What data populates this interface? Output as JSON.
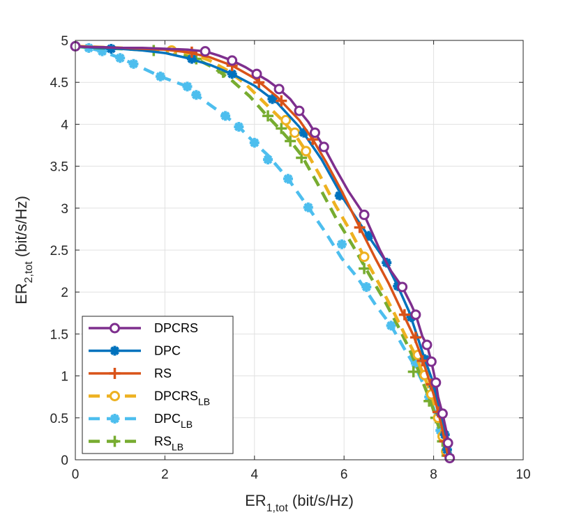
{
  "chart_data": {
    "type": "line",
    "title": "",
    "xlabel": {
      "main": "ER",
      "sub": "1,tot",
      "suffix": " (bit/s/Hz)"
    },
    "ylabel": {
      "main": "ER",
      "sub": "2,tot",
      "suffix": " (bit/s/Hz)"
    },
    "xlim": [
      0,
      10
    ],
    "ylim": [
      0,
      5
    ],
    "xticks": [
      "0",
      "2",
      "4",
      "6",
      "8",
      "10"
    ],
    "yticks": [
      "0",
      "0.5",
      "1",
      "1.5",
      "2",
      "2.5",
      "3",
      "3.5",
      "4",
      "4.5",
      "5"
    ],
    "grid": true,
    "legend_position": "bottom-left",
    "series": [
      {
        "name": "DPCRS",
        "sub": "",
        "color": "#7E2F8E",
        "linestyle": "solid",
        "marker": "circle",
        "points": [
          [
            0,
            4.93
          ],
          [
            0.3,
            4.92
          ],
          [
            0.6,
            4.92
          ],
          [
            1.0,
            4.91
          ],
          [
            1.5,
            4.91
          ],
          [
            2.0,
            4.9
          ],
          [
            2.5,
            4.89
          ],
          [
            2.9,
            4.87
          ],
          [
            3.2,
            4.82
          ],
          [
            3.5,
            4.76
          ],
          [
            3.8,
            4.68
          ],
          [
            4.05,
            4.6
          ],
          [
            4.3,
            4.52
          ],
          [
            4.55,
            4.42
          ],
          [
            4.8,
            4.3
          ],
          [
            5.0,
            4.16
          ],
          [
            5.2,
            4.03
          ],
          [
            5.35,
            3.9
          ],
          [
            5.55,
            3.73
          ],
          [
            5.8,
            3.48
          ],
          [
            6.1,
            3.2
          ],
          [
            6.45,
            2.92
          ],
          [
            6.8,
            2.5
          ],
          [
            7.05,
            2.25
          ],
          [
            7.3,
            2.06
          ],
          [
            7.5,
            1.85
          ],
          [
            7.6,
            1.73
          ],
          [
            7.75,
            1.47
          ],
          [
            7.85,
            1.37
          ],
          [
            7.95,
            1.17
          ],
          [
            8.05,
            0.92
          ],
          [
            8.1,
            0.75
          ],
          [
            8.2,
            0.55
          ],
          [
            8.28,
            0.35
          ],
          [
            8.32,
            0.2
          ],
          [
            8.35,
            0.07
          ],
          [
            8.36,
            0.02
          ]
        ],
        "markers": [
          [
            0,
            4.93
          ],
          [
            2.9,
            4.87
          ],
          [
            3.5,
            4.76
          ],
          [
            4.05,
            4.6
          ],
          [
            4.55,
            4.42
          ],
          [
            5.0,
            4.16
          ],
          [
            5.35,
            3.9
          ],
          [
            5.55,
            3.73
          ],
          [
            6.45,
            2.92
          ],
          [
            7.3,
            2.06
          ],
          [
            7.6,
            1.73
          ],
          [
            7.85,
            1.37
          ],
          [
            7.95,
            1.17
          ],
          [
            8.05,
            0.92
          ],
          [
            8.2,
            0.55
          ],
          [
            8.32,
            0.2
          ],
          [
            8.36,
            0.02
          ]
        ]
      },
      {
        "name": "DPC",
        "sub": "",
        "color": "#0072BD",
        "linestyle": "solid",
        "marker": "asterisk",
        "points": [
          [
            0,
            4.93
          ],
          [
            0.5,
            4.91
          ],
          [
            1.0,
            4.9
          ],
          [
            1.5,
            4.88
          ],
          [
            2.0,
            4.85
          ],
          [
            2.5,
            4.79
          ],
          [
            3.0,
            4.71
          ],
          [
            3.5,
            4.6
          ],
          [
            4.0,
            4.46
          ],
          [
            4.5,
            4.26
          ],
          [
            5.0,
            3.97
          ],
          [
            5.5,
            3.58
          ],
          [
            6.0,
            3.1
          ],
          [
            6.5,
            2.7
          ],
          [
            6.9,
            2.39
          ],
          [
            7.2,
            2.07
          ],
          [
            7.45,
            1.77
          ],
          [
            7.65,
            1.45
          ],
          [
            7.8,
            1.2
          ],
          [
            7.95,
            0.98
          ],
          [
            8.05,
            0.78
          ],
          [
            8.15,
            0.56
          ],
          [
            8.22,
            0.38
          ],
          [
            8.28,
            0.22
          ],
          [
            8.32,
            0.1
          ],
          [
            8.35,
            0.02
          ]
        ],
        "markers": [
          [
            0.8,
            4.9
          ],
          [
            2.6,
            4.78
          ],
          [
            3.5,
            4.6
          ],
          [
            4.4,
            4.3
          ],
          [
            5.1,
            3.9
          ],
          [
            5.9,
            3.15
          ],
          [
            6.55,
            2.67
          ],
          [
            6.95,
            2.35
          ],
          [
            7.2,
            2.07
          ],
          [
            7.5,
            1.7
          ],
          [
            7.8,
            1.2
          ],
          [
            8.0,
            0.88
          ],
          [
            8.15,
            0.56
          ],
          [
            8.25,
            0.3
          ],
          [
            8.3,
            0.12
          ]
        ]
      },
      {
        "name": "RS",
        "sub": "",
        "color": "#D95319",
        "linestyle": "solid",
        "marker": "plus",
        "points": [
          [
            0,
            4.93
          ],
          [
            0.5,
            4.92
          ],
          [
            1.0,
            4.91
          ],
          [
            1.5,
            4.9
          ],
          [
            2.0,
            4.89
          ],
          [
            2.5,
            4.86
          ],
          [
            3.0,
            4.8
          ],
          [
            3.5,
            4.7
          ],
          [
            4.0,
            4.55
          ],
          [
            4.5,
            4.33
          ],
          [
            5.0,
            4.05
          ],
          [
            5.3,
            3.82
          ],
          [
            5.6,
            3.55
          ],
          [
            5.95,
            3.2
          ],
          [
            6.35,
            2.77
          ],
          [
            6.7,
            2.4
          ],
          [
            7.0,
            2.1
          ],
          [
            7.3,
            1.76
          ],
          [
            7.55,
            1.48
          ],
          [
            7.75,
            1.2
          ],
          [
            7.9,
            0.95
          ],
          [
            8.0,
            0.78
          ],
          [
            8.1,
            0.57
          ],
          [
            8.18,
            0.4
          ],
          [
            8.25,
            0.22
          ],
          [
            8.3,
            0.1
          ],
          [
            8.33,
            0.02
          ]
        ],
        "markers": [
          [
            2.6,
            4.86
          ],
          [
            3.5,
            4.7
          ],
          [
            4.1,
            4.5
          ],
          [
            4.6,
            4.28
          ],
          [
            5.3,
            3.82
          ],
          [
            6.35,
            2.77
          ],
          [
            7.35,
            1.73
          ],
          [
            7.6,
            1.46
          ],
          [
            7.75,
            1.18
          ],
          [
            7.95,
            0.9
          ],
          [
            8.1,
            0.57
          ],
          [
            8.25,
            0.22
          ],
          [
            8.33,
            0.05
          ]
        ]
      },
      {
        "name": "DPCRS",
        "sub": "LB",
        "color": "#EDB120",
        "linestyle": "dashed",
        "marker": "circle",
        "points": [
          [
            0,
            4.93
          ],
          [
            0.5,
            4.92
          ],
          [
            1.0,
            4.91
          ],
          [
            1.5,
            4.9
          ],
          [
            2.15,
            4.88
          ],
          [
            2.6,
            4.84
          ],
          [
            3.0,
            4.76
          ],
          [
            3.4,
            4.64
          ],
          [
            3.8,
            4.48
          ],
          [
            4.2,
            4.27
          ],
          [
            4.6,
            4.06
          ],
          [
            4.9,
            3.88
          ],
          [
            5.15,
            3.68
          ],
          [
            5.45,
            3.4
          ],
          [
            5.8,
            3.04
          ],
          [
            6.15,
            2.72
          ],
          [
            6.45,
            2.42
          ],
          [
            6.8,
            2.08
          ],
          [
            7.1,
            1.77
          ],
          [
            7.35,
            1.5
          ],
          [
            7.6,
            1.24
          ],
          [
            7.8,
            0.98
          ],
          [
            7.95,
            0.78
          ],
          [
            8.05,
            0.6
          ],
          [
            8.15,
            0.42
          ],
          [
            8.22,
            0.26
          ],
          [
            8.28,
            0.14
          ],
          [
            8.32,
            0.05
          ]
        ],
        "markers": [
          [
            2.15,
            4.88
          ],
          [
            4.7,
            4.05
          ],
          [
            4.9,
            3.9
          ],
          [
            5.15,
            3.68
          ],
          [
            6.45,
            2.42
          ],
          [
            7.65,
            1.25
          ],
          [
            7.8,
            1.01
          ],
          [
            7.95,
            0.78
          ],
          [
            8.1,
            0.5
          ],
          [
            8.2,
            0.28
          ],
          [
            8.28,
            0.1
          ]
        ]
      },
      {
        "name": "DPC",
        "sub": "LB",
        "color": "#4DBEEE",
        "linestyle": "dashed",
        "marker": "asterisk",
        "points": [
          [
            0,
            4.93
          ],
          [
            0.3,
            4.91
          ],
          [
            0.6,
            4.87
          ],
          [
            1.0,
            4.79
          ],
          [
            1.3,
            4.72
          ],
          [
            1.9,
            4.57
          ],
          [
            2.5,
            4.45
          ],
          [
            2.7,
            4.35
          ],
          [
            3.35,
            4.1
          ],
          [
            3.65,
            3.97
          ],
          [
            4.0,
            3.78
          ],
          [
            4.3,
            3.63
          ],
          [
            4.75,
            3.35
          ],
          [
            5.2,
            3.01
          ],
          [
            5.6,
            2.7
          ],
          [
            5.95,
            2.4
          ],
          [
            6.3,
            2.17
          ],
          [
            6.7,
            1.85
          ],
          [
            7.05,
            1.6
          ],
          [
            7.35,
            1.32
          ],
          [
            7.6,
            1.1
          ],
          [
            7.8,
            0.87
          ],
          [
            7.98,
            0.65
          ],
          [
            8.1,
            0.45
          ],
          [
            8.2,
            0.27
          ],
          [
            8.28,
            0.14
          ],
          [
            8.33,
            0.05
          ]
        ],
        "markers": [
          [
            0.3,
            4.91
          ],
          [
            0.6,
            4.87
          ],
          [
            1.0,
            4.79
          ],
          [
            1.3,
            4.72
          ],
          [
            1.9,
            4.57
          ],
          [
            2.5,
            4.45
          ],
          [
            2.7,
            4.35
          ],
          [
            3.35,
            4.1
          ],
          [
            3.65,
            3.97
          ],
          [
            4.0,
            3.78
          ],
          [
            4.3,
            3.58
          ],
          [
            4.75,
            3.35
          ],
          [
            5.2,
            3.01
          ],
          [
            5.95,
            2.57
          ],
          [
            6.5,
            2.06
          ],
          [
            7.05,
            1.6
          ],
          [
            7.6,
            1.15
          ],
          [
            7.9,
            0.75
          ],
          [
            8.15,
            0.35
          ],
          [
            8.3,
            0.08
          ]
        ]
      },
      {
        "name": "RS",
        "sub": "LB",
        "color": "#77AC30",
        "linestyle": "dashed",
        "marker": "plus",
        "points": [
          [
            0,
            4.93
          ],
          [
            0.5,
            4.91
          ],
          [
            1.0,
            4.9
          ],
          [
            1.75,
            4.88
          ],
          [
            2.3,
            4.84
          ],
          [
            2.7,
            4.78
          ],
          [
            3.1,
            4.67
          ],
          [
            3.5,
            4.52
          ],
          [
            3.9,
            4.33
          ],
          [
            4.25,
            4.12
          ],
          [
            4.55,
            3.95
          ],
          [
            4.8,
            3.8
          ],
          [
            5.05,
            3.63
          ],
          [
            5.4,
            3.3
          ],
          [
            5.8,
            2.9
          ],
          [
            6.2,
            2.55
          ],
          [
            6.55,
            2.22
          ],
          [
            6.9,
            1.9
          ],
          [
            7.2,
            1.6
          ],
          [
            7.45,
            1.33
          ],
          [
            7.65,
            1.08
          ],
          [
            7.8,
            0.87
          ],
          [
            7.95,
            0.67
          ],
          [
            8.05,
            0.5
          ],
          [
            8.15,
            0.33
          ],
          [
            8.22,
            0.19
          ],
          [
            8.28,
            0.08
          ],
          [
            8.3,
            0.02
          ]
        ],
        "markers": [
          [
            1.75,
            4.88
          ],
          [
            2.7,
            4.78
          ],
          [
            3.3,
            4.62
          ],
          [
            4.3,
            4.1
          ],
          [
            4.6,
            3.95
          ],
          [
            4.8,
            3.8
          ],
          [
            5.05,
            3.6
          ],
          [
            6.45,
            2.28
          ],
          [
            7.55,
            1.05
          ],
          [
            7.9,
            0.7
          ],
          [
            8.05,
            0.5
          ],
          [
            8.2,
            0.22
          ],
          [
            8.3,
            0.05
          ]
        ]
      }
    ]
  }
}
